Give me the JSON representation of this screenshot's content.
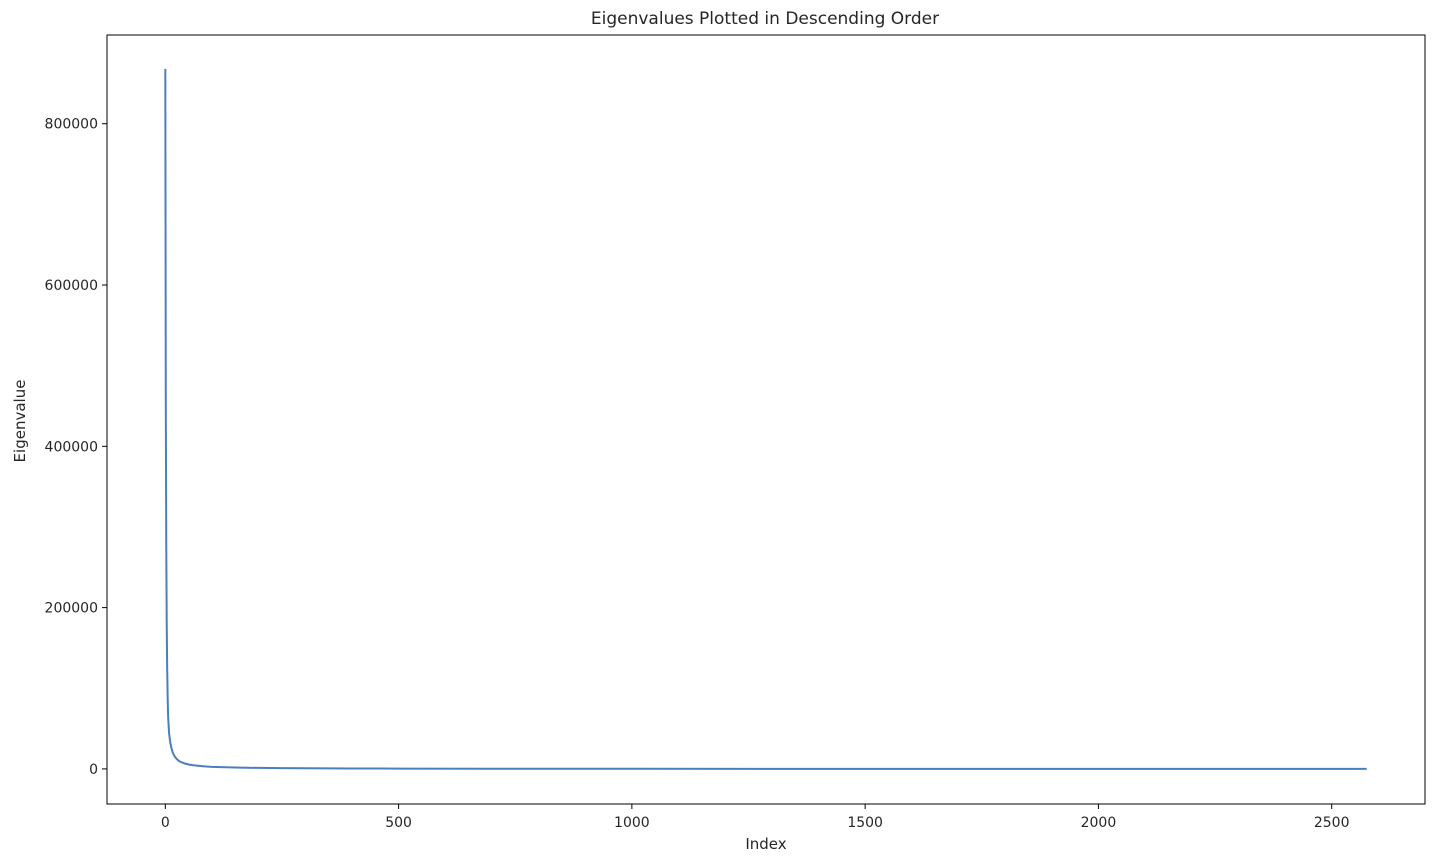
{
  "chart_data": {
    "type": "line",
    "title": "Eigenvalues Plotted in Descending Order",
    "xlabel": "Index",
    "ylabel": "Eigenvalue",
    "xlim": [
      -125,
      2700
    ],
    "ylim": [
      -43500,
      910000
    ],
    "xticks": [
      0,
      500,
      1000,
      1500,
      2000,
      2500
    ],
    "xtick_labels": [
      "0",
      "500",
      "1000",
      "1500",
      "2000",
      "2500"
    ],
    "yticks": [
      0,
      200000,
      400000,
      600000,
      800000
    ],
    "ytick_labels": [
      "0",
      "200000",
      "400000",
      "600000",
      "800000"
    ],
    "grid": false,
    "legend": "none",
    "series": [
      {
        "color": "#4c7ebf",
        "x": [
          0,
          1,
          2,
          3,
          4,
          5,
          6,
          8,
          10,
          13,
          16,
          20,
          25,
          30,
          40,
          50,
          60,
          80,
          100,
          130,
          160,
          200,
          250,
          300,
          400,
          500,
          700,
          1000,
          1500,
          2000,
          2500,
          2575
        ],
        "y": [
          868000,
          460000,
          280000,
          180000,
          125000,
          90000,
          65000,
          45000,
          35000,
          26000,
          20000,
          15500,
          12000,
          9500,
          7000,
          5500,
          4500,
          3300,
          2600,
          2000,
          1600,
          1300,
          1000,
          800,
          550,
          400,
          250,
          150,
          80,
          40,
          15,
          5
        ]
      }
    ]
  }
}
